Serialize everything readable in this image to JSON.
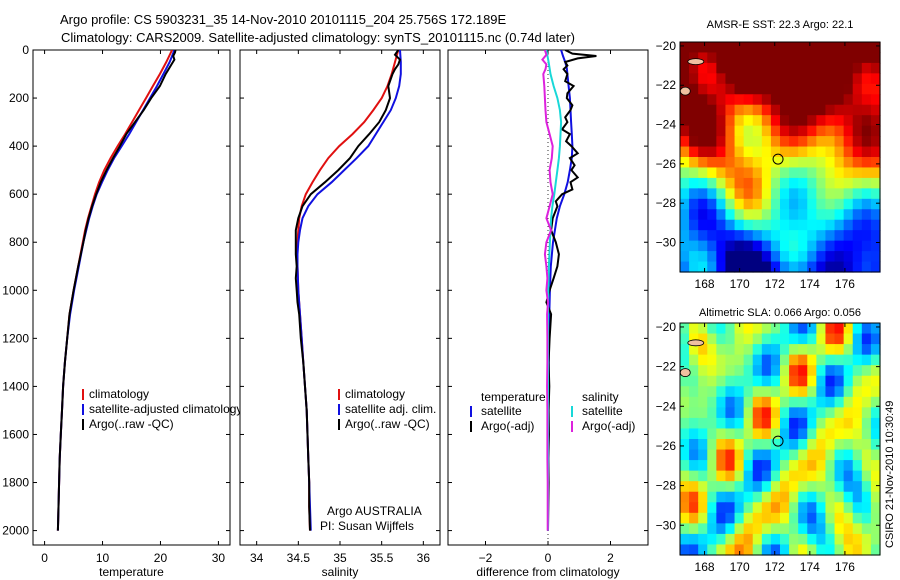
{
  "header": {
    "line1": "Argo profile: CS 5903231_35 14-Nov-2010 20101115_204 25.756S 172.189E",
    "line2": "Climatology: CARS2009. Satellite-adjusted climatology: synTS_20101115.nc (0.74d later)"
  },
  "footer": {
    "stamp": "CSIRO 21-Nov-2010 10:30:49"
  },
  "colors": {
    "clim": "#e01010",
    "sat": "#1010e0",
    "argo": "#000000",
    "cyan": "#18d8d8",
    "magenta": "#dd22dd"
  },
  "chart_data": [
    {
      "id": "temperature",
      "type": "line",
      "xlabel": "temperature",
      "xlim": [
        -2,
        32
      ],
      "xticks": [
        0,
        10,
        20,
        30
      ],
      "ylim": [
        0,
        2060
      ],
      "yticks": [
        0,
        200,
        400,
        600,
        800,
        1000,
        1200,
        1400,
        1600,
        1800,
        2000
      ],
      "y_reversed": true,
      "legend": {
        "position": "lower-right",
        "items": [
          "climatology",
          "satellite-adjusted climatology",
          "Argo(..raw -QC)"
        ]
      },
      "series": [
        {
          "name": "climatology",
          "color_key": "clim",
          "depth": [
            0,
            25,
            50,
            100,
            150,
            200,
            250,
            300,
            350,
            400,
            450,
            500,
            550,
            600,
            650,
            700,
            750,
            800,
            900,
            1000,
            1100,
            1200,
            1300,
            1400,
            1500,
            1600,
            1700,
            1800,
            1900,
            2000
          ],
          "values": [
            22.0,
            21.5,
            21.0,
            19.9,
            18.7,
            17.5,
            16.3,
            15.1,
            13.9,
            12.6,
            11.4,
            10.3,
            9.4,
            8.7,
            8.1,
            7.5,
            7.0,
            6.6,
            5.8,
            5.0,
            4.3,
            3.9,
            3.5,
            3.2,
            3.0,
            2.8,
            2.6,
            2.5,
            2.4,
            2.3
          ]
        },
        {
          "name": "satellite-adjusted climatology",
          "color_key": "sat",
          "depth": [
            0,
            25,
            50,
            100,
            150,
            200,
            250,
            300,
            350,
            400,
            450,
            500,
            550,
            600,
            650,
            700,
            750,
            800,
            900,
            1000,
            1100,
            1200,
            1300,
            1400,
            1500,
            1600,
            1700,
            1800,
            1900,
            2000
          ],
          "values": [
            22.4,
            22.0,
            21.6,
            20.5,
            19.4,
            18.2,
            17.0,
            15.8,
            14.6,
            13.3,
            12.0,
            10.9,
            9.9,
            9.0,
            8.3,
            7.7,
            7.2,
            6.7,
            5.9,
            5.1,
            4.4,
            3.9,
            3.5,
            3.2,
            3.0,
            2.8,
            2.6,
            2.5,
            2.4,
            2.3
          ]
        },
        {
          "name": "Argo(..raw -QC)",
          "color_key": "argo",
          "depth": [
            0,
            10,
            25,
            40,
            60,
            80,
            100,
            150,
            200,
            250,
            300,
            350,
            400,
            450,
            500,
            550,
            600,
            650,
            700,
            750,
            800,
            900,
            1000,
            1100,
            1200,
            1300,
            1400,
            1500,
            1600,
            1700,
            1800,
            1900,
            2000
          ],
          "values": [
            22.6,
            22.5,
            22.2,
            22.4,
            21.9,
            21.4,
            20.9,
            19.9,
            18.4,
            17.1,
            15.6,
            14.1,
            13.0,
            11.8,
            10.7,
            9.7,
            8.9,
            8.2,
            7.6,
            7.1,
            6.7,
            5.8,
            5.0,
            4.3,
            3.9,
            3.5,
            3.2,
            3.0,
            2.8,
            2.6,
            2.5,
            2.4,
            2.3
          ]
        }
      ]
    },
    {
      "id": "salinity",
      "type": "line",
      "xlabel": "salinity",
      "xlim": [
        33.8,
        36.2
      ],
      "xticks": [
        34,
        34.5,
        35,
        35.5,
        36
      ],
      "xtick_labels": [
        "34",
        "34.5",
        "35",
        "35.5",
        "36"
      ],
      "ylim": [
        0,
        2060
      ],
      "y_reversed": true,
      "legend": {
        "position": "lower-right",
        "items": [
          "climatology",
          "satellite adj. clim.",
          "Argo(..raw -QC)"
        ]
      },
      "annotations": [
        "Argo AUSTRALIA",
        "PI: Susan Wijffels"
      ],
      "series": [
        {
          "name": "climatology",
          "color_key": "clim",
          "depth": [
            0,
            50,
            100,
            150,
            200,
            250,
            300,
            350,
            400,
            450,
            500,
            550,
            600,
            650,
            700,
            750,
            800,
            850,
            900,
            1000,
            1100,
            1200,
            1300,
            1400,
            1500,
            1600,
            1700,
            1800,
            1900,
            2000
          ],
          "values": [
            35.7,
            35.66,
            35.62,
            35.57,
            35.5,
            35.4,
            35.29,
            35.15,
            34.99,
            34.86,
            34.76,
            34.67,
            34.59,
            34.54,
            34.51,
            34.5,
            34.49,
            34.49,
            34.49,
            34.5,
            34.52,
            34.54,
            34.56,
            34.58,
            34.6,
            34.61,
            34.62,
            34.63,
            34.63,
            34.64
          ]
        },
        {
          "name": "satellite adj. clim.",
          "color_key": "sat",
          "depth": [
            0,
            50,
            100,
            150,
            200,
            250,
            300,
            350,
            400,
            450,
            500,
            550,
            600,
            650,
            700,
            750,
            800,
            850,
            900,
            1000,
            1100,
            1200,
            1300,
            1400,
            1500,
            1600,
            1700,
            1800,
            1900,
            2000
          ],
          "values": [
            35.72,
            35.73,
            35.73,
            35.71,
            35.67,
            35.61,
            35.52,
            35.43,
            35.34,
            35.2,
            35.05,
            34.9,
            34.73,
            34.62,
            34.55,
            34.52,
            34.5,
            34.49,
            34.49,
            34.5,
            34.52,
            34.54,
            34.56,
            34.58,
            34.6,
            34.61,
            34.62,
            34.63,
            34.64,
            34.65
          ]
        },
        {
          "name": "Argo(..raw -QC)",
          "color_key": "argo",
          "depth": [
            0,
            20,
            40,
            60,
            80,
            100,
            150,
            200,
            250,
            300,
            350,
            400,
            450,
            500,
            550,
            600,
            650,
            700,
            750,
            800,
            850,
            900,
            950,
            1000,
            1050,
            1100,
            1200,
            1300,
            1400,
            1500,
            1600,
            1700,
            1800,
            1900,
            2000
          ],
          "values": [
            35.7,
            35.66,
            35.72,
            35.7,
            35.66,
            35.63,
            35.58,
            35.6,
            35.55,
            35.47,
            35.35,
            35.22,
            35.12,
            34.98,
            34.82,
            34.65,
            34.55,
            34.5,
            34.47,
            34.47,
            34.47,
            34.48,
            34.47,
            34.48,
            34.49,
            34.51,
            34.53,
            34.56,
            34.58,
            34.6,
            34.61,
            34.62,
            34.63,
            34.63,
            34.64
          ]
        }
      ]
    },
    {
      "id": "difference",
      "type": "line",
      "xlabel": "difference from climatology",
      "xlim": [
        -3.2,
        3.2
      ],
      "xticks": [
        -2,
        0,
        2
      ],
      "ylim": [
        0,
        2060
      ],
      "y_reversed": true,
      "legend": {
        "position": "lower-center",
        "col1_head": "temperature",
        "col2_head": "salinity",
        "items": [
          "satellite",
          "Argo(-adj)",
          "satellite",
          "Argo(-adj)"
        ]
      },
      "series": [
        {
          "name": "temperature satellite",
          "color_key": "sat",
          "depth": [
            0,
            25,
            50,
            75,
            100,
            150,
            200,
            250,
            300,
            350,
            400,
            450,
            500,
            550,
            600,
            650,
            700,
            800,
            900,
            1000,
            1100,
            1200,
            1400,
            1600,
            1800,
            2000
          ],
          "values": [
            0.42,
            0.48,
            0.55,
            0.6,
            0.62,
            0.66,
            0.7,
            0.72,
            0.74,
            0.76,
            0.78,
            0.76,
            0.7,
            0.63,
            0.52,
            0.38,
            0.28,
            0.16,
            0.09,
            0.06,
            0.04,
            0.03,
            0.02,
            0.01,
            0.0,
            0.0
          ]
        },
        {
          "name": "temperature Argo(-adj)",
          "color_key": "argo",
          "depth": [
            0,
            15,
            25,
            35,
            50,
            65,
            80,
            100,
            130,
            150,
            180,
            200,
            230,
            250,
            280,
            300,
            330,
            350,
            380,
            400,
            430,
            450,
            480,
            500,
            530,
            550,
            580,
            600,
            630,
            650,
            700,
            750,
            800,
            850,
            900,
            950,
            1000,
            1050,
            1100,
            1200,
            1300,
            1400,
            1500,
            1600,
            1700,
            1800,
            1900,
            2000
          ],
          "values": [
            0.55,
            0.78,
            1.55,
            0.95,
            0.55,
            0.62,
            0.5,
            0.62,
            0.55,
            0.82,
            0.62,
            0.6,
            0.78,
            0.72,
            0.55,
            0.62,
            0.45,
            0.7,
            0.58,
            0.75,
            0.95,
            0.7,
            0.85,
            0.75,
            0.95,
            0.72,
            0.78,
            0.45,
            0.25,
            0.3,
            0.15,
            0.1,
            0.25,
            0.35,
            0.3,
            0.18,
            0.05,
            -0.05,
            0.1,
            0.05,
            0.02,
            0.04,
            0.02,
            0.03,
            0.01,
            0.02,
            0.01,
            0.0
          ]
        },
        {
          "name": "salinity satellite",
          "color_key": "cyan",
          "depth": [
            0,
            50,
            100,
            150,
            200,
            250,
            300,
            350,
            400,
            450,
            500,
            550,
            600,
            650,
            700,
            750,
            800,
            900,
            1000,
            1100,
            1200,
            1300,
            1400,
            1600,
            1800,
            2000
          ],
          "values": [
            -0.05,
            0.02,
            0.08,
            0.18,
            0.3,
            0.38,
            0.42,
            0.4,
            0.38,
            0.35,
            0.3,
            0.25,
            0.2,
            0.14,
            0.1,
            0.08,
            0.06,
            0.03,
            0.01,
            0.0,
            0.0,
            0.0,
            0.0,
            0.0,
            0.0,
            0.0
          ]
        },
        {
          "name": "salinity Argo(-adj)",
          "color_key": "magenta",
          "depth": [
            0,
            20,
            40,
            60,
            80,
            100,
            150,
            200,
            250,
            300,
            350,
            400,
            450,
            500,
            550,
            600,
            650,
            700,
            750,
            800,
            850,
            900,
            950,
            1000,
            1050,
            1100,
            1200,
            1300,
            1400,
            1500,
            1600,
            1700,
            1800,
            2000
          ],
          "values": [
            -0.1,
            -0.05,
            -0.18,
            -0.05,
            -0.08,
            -0.15,
            -0.12,
            -0.1,
            -0.08,
            -0.05,
            0.05,
            0.15,
            0.12,
            0.05,
            0.08,
            0.15,
            0.05,
            -0.05,
            0.1,
            -0.05,
            -0.1,
            -0.05,
            -0.02,
            -0.05,
            0.0,
            -0.03,
            -0.02,
            -0.02,
            -0.03,
            -0.02,
            -0.02,
            -0.02,
            -0.01,
            -0.01
          ]
        }
      ]
    },
    {
      "id": "sst-map",
      "type": "heatmap",
      "title": "AMSR-E SST: 22.3 Argo: 22.1",
      "variable": "SST",
      "value_range": [
        19.5,
        23.5
      ],
      "lon_range": [
        166.6,
        178.0
      ],
      "lat_range": [
        -31.5,
        -19.8
      ],
      "xticks": [
        168,
        170,
        172,
        174,
        176
      ],
      "yticks": [
        -20,
        -22,
        -24,
        -26,
        -28,
        -30
      ],
      "argo_position": {
        "lon": 172.189,
        "lat": -25.756
      },
      "grid_nx": 22,
      "grid_ny": 22,
      "values": []
    },
    {
      "id": "sla-map",
      "type": "heatmap",
      "title": "Altimetric SLA: 0.066 Argo: 0.056",
      "variable": "SLA",
      "value_range": [
        -0.1,
        0.25
      ],
      "lon_range": [
        166.6,
        178.0
      ],
      "lat_range": [
        -31.5,
        -19.8
      ],
      "xticks": [
        168,
        170,
        172,
        174,
        176
      ],
      "yticks": [
        -20,
        -22,
        -24,
        -26,
        -28,
        -30
      ],
      "argo_position": {
        "lon": 172.189,
        "lat": -25.756
      },
      "grid_nx": 22,
      "grid_ny": 22,
      "values": []
    }
  ]
}
